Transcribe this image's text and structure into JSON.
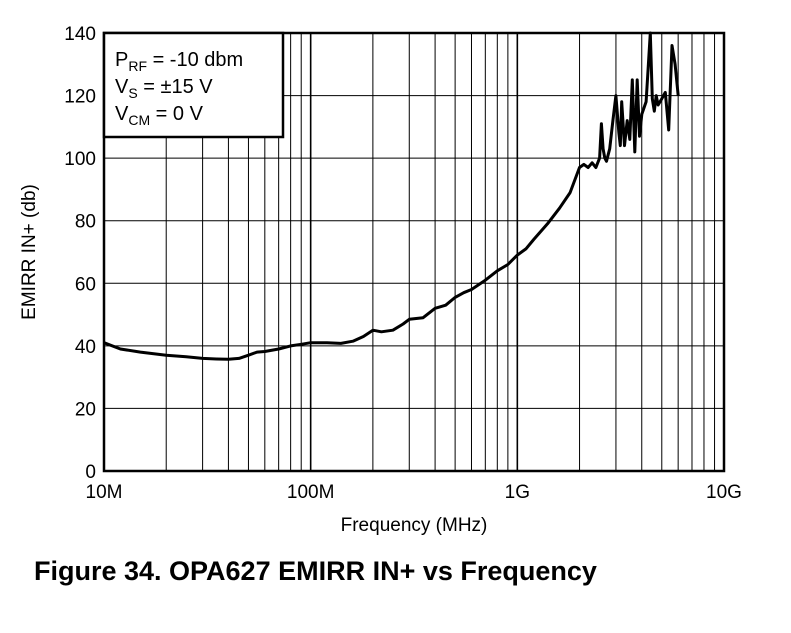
{
  "caption": "Figure 34.  OPA627 EMIRR IN+ vs Frequency",
  "chart_data": {
    "type": "line",
    "xlabel": "Frequency (MHz)",
    "ylabel": "EMIRR IN+ (db)",
    "xscale": "log",
    "xlim": [
      10,
      10000
    ],
    "ylim": [
      0,
      140
    ],
    "grid": true,
    "x_tick_labels": [
      "10M",
      "100M",
      "1G",
      "10G"
    ],
    "y_ticks": [
      0,
      20,
      40,
      60,
      80,
      100,
      120,
      140
    ],
    "legend_lines": [
      {
        "base": "P",
        "sub": "RF",
        "rest": " = -10 dbm"
      },
      {
        "base": "V",
        "sub": "S",
        "rest": " = ±15 V"
      },
      {
        "base": "V",
        "sub": "CM",
        "rest": " = 0 V"
      }
    ],
    "legend_placement": "top-left",
    "series": [
      {
        "color": "#000000",
        "x": [
          10,
          12,
          15,
          20,
          25,
          30,
          35,
          40,
          45,
          50,
          55,
          60,
          70,
          80,
          90,
          100,
          120,
          140,
          160,
          180,
          200,
          220,
          250,
          280,
          300,
          350,
          400,
          450,
          500,
          550,
          600,
          700,
          800,
          900,
          1000,
          1100,
          1200,
          1400,
          1600,
          1800,
          2000,
          2100,
          2200,
          2300,
          2400,
          2500,
          2550,
          2600,
          2650,
          2700,
          2800,
          2900,
          3000,
          3100,
          3150,
          3200,
          3300,
          3400,
          3500,
          3600,
          3700,
          3800,
          3900,
          4000,
          4200,
          4400,
          4500,
          4600,
          4700,
          4800,
          5000,
          5200,
          5400,
          5600,
          5800,
          6000
        ],
        "y": [
          41,
          39,
          38,
          37,
          36.5,
          36,
          35.8,
          35.7,
          36,
          37,
          38,
          38.2,
          39,
          40,
          40.5,
          41,
          41,
          40.8,
          41.5,
          43,
          45,
          44.5,
          45,
          47,
          48.5,
          49,
          52,
          53,
          55.5,
          57,
          58,
          61,
          64,
          66,
          69,
          71,
          74,
          79,
          84,
          89,
          97,
          98,
          97,
          98.5,
          97,
          100,
          111,
          103,
          100,
          99,
          103,
          112,
          120,
          108,
          104,
          118,
          104,
          112,
          106,
          125,
          102,
          125,
          107,
          114,
          118,
          140,
          119,
          115,
          120,
          117,
          119,
          121,
          109,
          136,
          130,
          120
        ]
      }
    ]
  }
}
